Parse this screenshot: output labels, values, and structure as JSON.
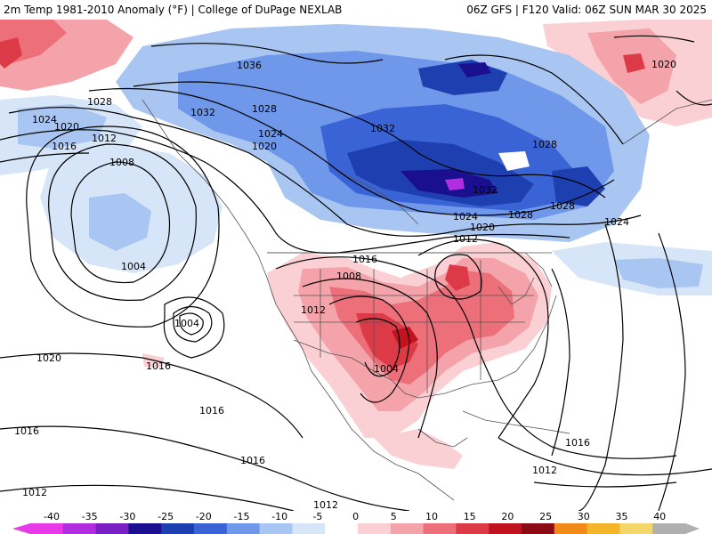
{
  "header": {
    "left_title": "2m Temp 1981-2010 Anomaly (°F) | College of DuPage NEXLAB",
    "right_title": "06Z GFS | F120 Valid: 06Z SUN MAR 30 2025"
  },
  "isobars": [
    "1036",
    "1032",
    "1032",
    "1032",
    "1028",
    "1028",
    "1028",
    "1028",
    "1028",
    "1024",
    "1024",
    "1024",
    "1024",
    "1020",
    "1020",
    "1020",
    "1020",
    "1020",
    "1016",
    "1016",
    "1016",
    "1016",
    "1016",
    "1016",
    "1016",
    "1012",
    "1012",
    "1012",
    "1012",
    "1012",
    "1012",
    "1008",
    "1008",
    "1004",
    "1004",
    "1004"
  ],
  "legend": {
    "labels": [
      "-40",
      "-35",
      "-30",
      "-25",
      "-20",
      "-15",
      "-10",
      "-5",
      "0",
      "5",
      "10",
      "15",
      "20",
      "25",
      "30",
      "35",
      "40"
    ],
    "colors": [
      "#e83ae8",
      "#b02ee0",
      "#7a1fc4",
      "#1a0f8f",
      "#1e3fb0",
      "#3a64d6",
      "#6f97ea",
      "#a9c6f2",
      "#d6e5f8",
      "#ffffff",
      "#fbd0d4",
      "#f5a3aa",
      "#ec6f79",
      "#dd3a47",
      "#c1121f",
      "#8c0a14",
      "#f28a1a",
      "#f5b52a",
      "#f4d76a",
      "#b0b0b0"
    ]
  }
}
